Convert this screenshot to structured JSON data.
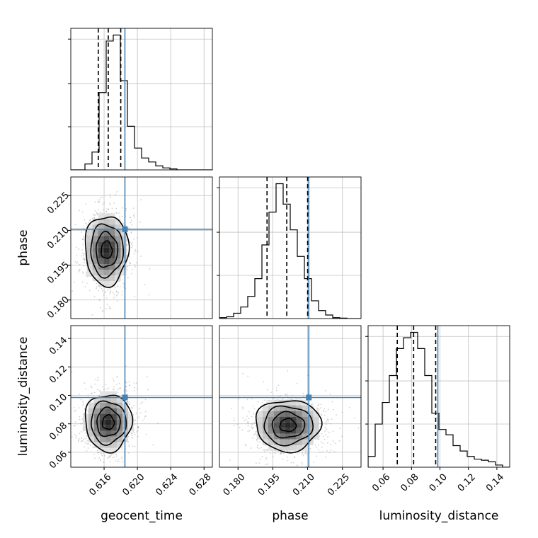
{
  "chart_data": {
    "type": "corner",
    "parameters": [
      {
        "name": "geocent_time",
        "label": "geocent_time",
        "range": [
          0.612,
          0.629
        ],
        "ticks": [
          "0.616",
          "0.620",
          "0.624",
          "0.628"
        ],
        "tick_values": [
          0.616,
          0.62,
          0.624,
          0.628
        ],
        "truth": 0.6185,
        "quantiles": [
          0.6153,
          0.6165,
          0.618
        ],
        "hist_edges_start": 0.612,
        "hist_bin_width": 0.00085,
        "hist_counts": [
          0,
          0,
          3,
          9,
          39,
          65,
          68,
          45,
          22,
          11,
          6,
          4,
          2,
          1,
          0.5,
          0,
          0,
          0,
          0,
          0
        ]
      },
      {
        "name": "phase",
        "label": "phase",
        "range": [
          0.172,
          0.233
        ],
        "ticks": [
          "0.180",
          "0.195",
          "0.210",
          "0.225"
        ],
        "tick_values": [
          0.18,
          0.195,
          0.21,
          0.225
        ],
        "truth": 0.2105,
        "quantiles": [
          0.1925,
          0.201,
          0.21
        ],
        "hist_edges_start": 0.172,
        "hist_bin_width": 0.00305,
        "hist_counts": [
          1,
          2,
          6,
          13,
          25,
          45,
          83,
          120,
          152,
          129,
          100,
          70,
          45,
          20,
          9,
          4,
          1,
          0.5,
          0,
          0
        ]
      },
      {
        "name": "luminosity_distance",
        "label": "luminosity_distance",
        "range": [
          0.0495,
          0.149
        ],
        "ticks": [
          "0.06",
          "0.08",
          "0.10",
          "0.12",
          "0.14"
        ],
        "tick_values": [
          0.06,
          0.08,
          0.1,
          0.12,
          0.14
        ],
        "truth": 0.0985,
        "quantiles": [
          0.07,
          0.0815,
          0.097
        ],
        "hist_edges_start": 0.0495,
        "hist_bin_width": 0.004975,
        "hist_counts": [
          2,
          8,
          12,
          17,
          22,
          24,
          25,
          22,
          17,
          10,
          7,
          6,
          4,
          3,
          2,
          1.5,
          1.3,
          1,
          0.4,
          0
        ]
      }
    ],
    "joint": [
      {
        "x": "geocent_time",
        "y": "phase",
        "center": [
          0.6163,
          0.2015
        ],
        "sigma": [
          0.0013,
          0.0075
        ],
        "corr": 0.0,
        "truth": [
          0.6185,
          0.2105
        ]
      },
      {
        "x": "geocent_time",
        "y": "luminosity_distance",
        "center": [
          0.6165,
          0.081
        ],
        "sigma": [
          0.0014,
          0.01
        ],
        "corr": 0.05,
        "truth": [
          0.6185,
          0.0985
        ]
      },
      {
        "x": "phase",
        "y": "luminosity_distance",
        "center": [
          0.2015,
          0.079
        ],
        "sigma": [
          0.007,
          0.009
        ],
        "corr": 0.0,
        "truth": [
          0.2105,
          0.0985
        ]
      }
    ],
    "grid": true,
    "truth_color": "#4682b4",
    "contour_color": "#000000",
    "quantile_style": "dashed"
  }
}
